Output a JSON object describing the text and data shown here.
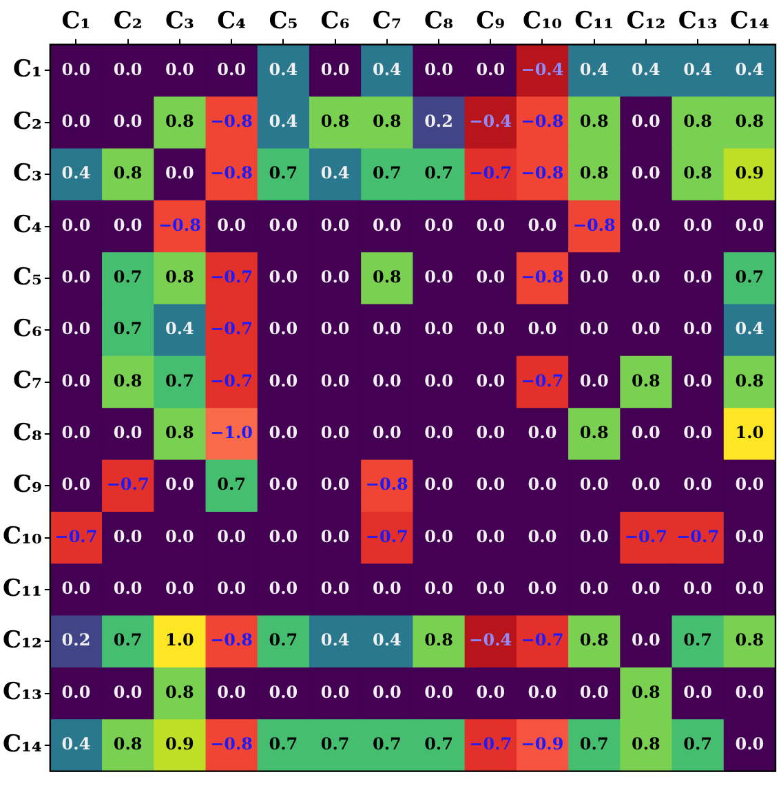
{
  "chart_data": {
    "type": "heatmap",
    "categories": [
      "C₁",
      "C₂",
      "C₃",
      "C₄",
      "C₅",
      "C₆",
      "C₇",
      "C₈",
      "C₉",
      "C₁₀",
      "C₁₁",
      "C₁₂",
      "C₁₃",
      "C₁₄"
    ],
    "y_categories": [
      "C₁",
      "C₂",
      "C₃",
      "C₄",
      "C₅",
      "C₆",
      "C₇",
      "C₈",
      "C₉",
      "C₁₀",
      "C₁₁",
      "C₁₂",
      "C₁₃",
      "C₁₄"
    ],
    "cells": [
      [
        0,
        0,
        0,
        0,
        0.4,
        0,
        0.4,
        0,
        0,
        -0.4,
        0.4,
        0.4,
        0.4,
        0.4
      ],
      [
        0,
        0,
        0.8,
        -0.8,
        0.4,
        0.8,
        0.8,
        0.2,
        -0.4,
        -0.8,
        0.8,
        0,
        0.8,
        0.8
      ],
      [
        0.4,
        0.8,
        0,
        -0.8,
        0.7,
        0.4,
        0.7,
        0.7,
        -0.7,
        -0.8,
        0.8,
        0,
        0.8,
        0.9
      ],
      [
        0,
        0,
        -0.8,
        0,
        0,
        0,
        0,
        0,
        0,
        0,
        -0.8,
        0,
        0,
        0
      ],
      [
        0,
        0.7,
        0.8,
        -0.7,
        0,
        0,
        0.8,
        0,
        0,
        -0.8,
        0,
        0,
        0,
        0.7
      ],
      [
        0,
        0.7,
        0.4,
        -0.7,
        0,
        0,
        0,
        0,
        0,
        0,
        0,
        0,
        0,
        0.4
      ],
      [
        0,
        0.8,
        0.7,
        -0.7,
        0,
        0,
        0,
        0,
        0,
        -0.7,
        0,
        0.8,
        0,
        0.8
      ],
      [
        0,
        0,
        0.8,
        -1.0,
        0,
        0,
        0,
        0,
        0,
        0,
        0.8,
        0,
        0,
        1.0
      ],
      [
        0,
        -0.7,
        0,
        0.7,
        0,
        0,
        -0.8,
        0,
        0,
        0,
        0,
        0,
        0,
        0
      ],
      [
        -0.7,
        0,
        0,
        0,
        0,
        0,
        -0.7,
        0,
        0,
        0,
        0,
        -0.7,
        -0.7,
        0
      ],
      [
        0,
        0,
        0,
        0,
        0,
        0,
        0,
        0,
        0,
        0,
        0,
        0,
        0,
        0
      ],
      [
        0.2,
        0.7,
        1.0,
        -0.8,
        0.7,
        0.4,
        0.4,
        0.8,
        -0.4,
        -0.7,
        0.8,
        0,
        0.7,
        0.8
      ],
      [
        0,
        0,
        0.8,
        0,
        0,
        0,
        0,
        0,
        0,
        0,
        0,
        0.8,
        0,
        0
      ],
      [
        0.4,
        0.8,
        0.9,
        -0.8,
        0.7,
        0.7,
        0.7,
        0.7,
        -0.7,
        -0.9,
        0.7,
        0.8,
        0.7,
        0
      ]
    ],
    "cell_labels": [
      [
        "0.0",
        "0.0",
        "0.0",
        "0.0",
        "0.4",
        "0.0",
        "0.4",
        "0.0",
        "0.0",
        "−0.4",
        "0.4",
        "0.4",
        "0.4",
        "0.4"
      ],
      [
        "0.0",
        "0.0",
        "0.8",
        "−0.8",
        "0.4",
        "0.8",
        "0.8",
        "0.2",
        "−0.4",
        "−0.8",
        "0.8",
        "0.0",
        "0.8",
        "0.8"
      ],
      [
        "0.4",
        "0.8",
        "0.0",
        "−0.8",
        "0.7",
        "0.4",
        "0.7",
        "0.7",
        "−0.7",
        "−0.8",
        "0.8",
        "0.0",
        "0.8",
        "0.9"
      ],
      [
        "0.0",
        "0.0",
        "−0.8",
        "0.0",
        "0.0",
        "0.0",
        "0.0",
        "0.0",
        "0.0",
        "0.0",
        "−0.8",
        "0.0",
        "0.0",
        "0.0"
      ],
      [
        "0.0",
        "0.7",
        "0.8",
        "−0.7",
        "0.0",
        "0.0",
        "0.8",
        "0.0",
        "0.0",
        "−0.8",
        "0.0",
        "0.0",
        "0.0",
        "0.7"
      ],
      [
        "0.0",
        "0.7",
        "0.4",
        "−0.7",
        "0.0",
        "0.0",
        "0.0",
        "0.0",
        "0.0",
        "0.0",
        "0.0",
        "0.0",
        "0.0",
        "0.4"
      ],
      [
        "0.0",
        "0.8",
        "0.7",
        "−0.7",
        "0.0",
        "0.0",
        "0.0",
        "0.0",
        "0.0",
        "−0.7",
        "0.0",
        "0.8",
        "0.0",
        "0.8"
      ],
      [
        "0.0",
        "0.0",
        "0.8",
        "−1.0",
        "0.0",
        "0.0",
        "0.0",
        "0.0",
        "0.0",
        "0.0",
        "0.8",
        "0.0",
        "0.0",
        "1.0"
      ],
      [
        "0.0",
        "−0.7",
        "0.0",
        "0.7",
        "0.0",
        "0.0",
        "−0.8",
        "0.0",
        "0.0",
        "0.0",
        "0.0",
        "0.0",
        "0.0",
        "0.0"
      ],
      [
        "−0.7",
        "0.0",
        "0.0",
        "0.0",
        "0.0",
        "0.0",
        "−0.7",
        "0.0",
        "0.0",
        "0.0",
        "0.0",
        "−0.7",
        "−0.7",
        "0.0"
      ],
      [
        "0.0",
        "0.0",
        "0.0",
        "0.0",
        "0.0",
        "0.0",
        "0.0",
        "0.0",
        "0.0",
        "0.0",
        "0.0",
        "0.0",
        "0.0",
        "0.0"
      ],
      [
        "0.2",
        "0.7",
        "1.0",
        "−0.8",
        "0.7",
        "0.4",
        "0.4",
        "0.8",
        "−0.4",
        "−0.7",
        "0.8",
        "0.0",
        "0.7",
        "0.8"
      ],
      [
        "0.0",
        "0.0",
        "0.8",
        "0.0",
        "0.0",
        "0.0",
        "0.0",
        "0.0",
        "0.0",
        "0.0",
        "0.0",
        "0.8",
        "0.0",
        "0.0"
      ],
      [
        "0.4",
        "0.8",
        "0.9",
        "−0.8",
        "0.7",
        "0.7",
        "0.7",
        "0.7",
        "−0.7",
        "−0.9",
        "0.7",
        "0.8",
        "0.7",
        "0.0"
      ]
    ],
    "data_labels": true
  }
}
